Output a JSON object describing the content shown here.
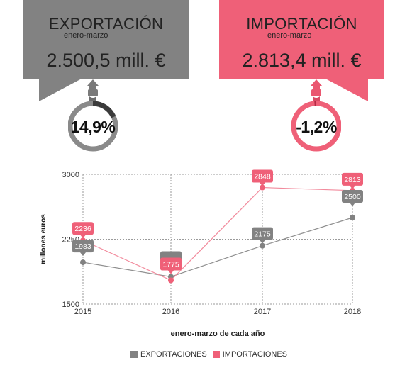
{
  "export": {
    "title": "EXPORTACIÓN",
    "period": "enero-marzo",
    "amount": "2.500,5 mill. €",
    "change": "14,9%",
    "change_value": 14.9,
    "color": "#828282"
  },
  "import": {
    "title": "IMPORTACIÓN",
    "period": "enero-marzo",
    "amount": "2.813,4 mill. €",
    "change": "-1,2%",
    "change_value": -1.2,
    "color": "#ef6078"
  },
  "chart_data": {
    "type": "line",
    "categories": [
      "2015",
      "2016",
      "2017",
      "2018"
    ],
    "series": [
      {
        "name": "EXPORTACIONES",
        "values": [
          1983,
          1816,
          2175,
          2500
        ],
        "labels": [
          "1983",
          "",
          "2175",
          "2500"
        ],
        "color": "#828282"
      },
      {
        "name": "IMPORTACIONES",
        "values": [
          2236,
          1775,
          2848,
          2813
        ],
        "labels": [
          "2236",
          "1775",
          "2848",
          "2813"
        ],
        "color": "#ef6078"
      }
    ],
    "y_ticks": [
      "1500",
      "2250",
      "3000"
    ],
    "ylim": [
      1500,
      3000
    ],
    "xlabel": "enero-marzo de cada año",
    "ylabel": "millones euros",
    "grid": true,
    "legend_position": "bottom"
  }
}
